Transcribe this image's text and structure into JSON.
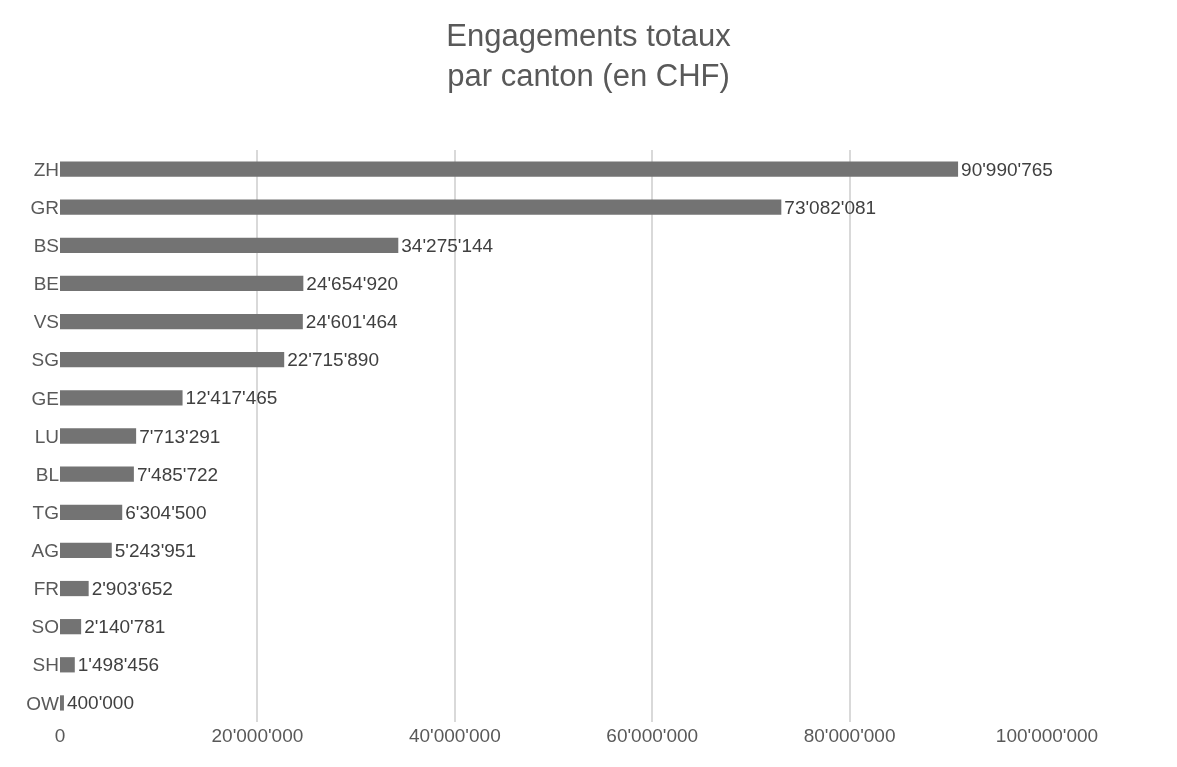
{
  "chart_data": {
    "type": "bar",
    "orientation": "horizontal",
    "title": "Engagements totaux\npar canton (en CHF)",
    "categories": [
      "ZH",
      "GR",
      "BS",
      "BE",
      "VS",
      "SG",
      "GE",
      "LU",
      "BL",
      "TG",
      "AG",
      "FR",
      "SO",
      "SH",
      "OW"
    ],
    "values": [
      90990765,
      73082081,
      34275144,
      24654920,
      24601464,
      22715890,
      12417465,
      7713291,
      7485722,
      6304500,
      5243951,
      2903652,
      2140781,
      1498456,
      400000
    ],
    "value_labels": [
      "90'990'765",
      "73'082'081",
      "34'275'144",
      "24'654'920",
      "24'601'464",
      "22'715'890",
      "12'417'465",
      "7'713'291",
      "7'485'722",
      "6'304'500",
      "5'243'951",
      "2'903'652",
      "2'140'781",
      "1'498'456",
      "400'000"
    ],
    "color": "#737373",
    "xlim": [
      0,
      100000000
    ],
    "xticks": [
      0,
      {
        "value": 20000000,
        "label": "20'000'000"
      },
      {
        "value": 40000000,
        "label": "40'000'000"
      },
      {
        "value": 60000000,
        "label": "60'000'000"
      },
      {
        "value": 80000000,
        "label": "80'000'000"
      },
      {
        "value": 100000000,
        "label": "100'000'000"
      }
    ],
    "grid": "x",
    "legend": false
  }
}
